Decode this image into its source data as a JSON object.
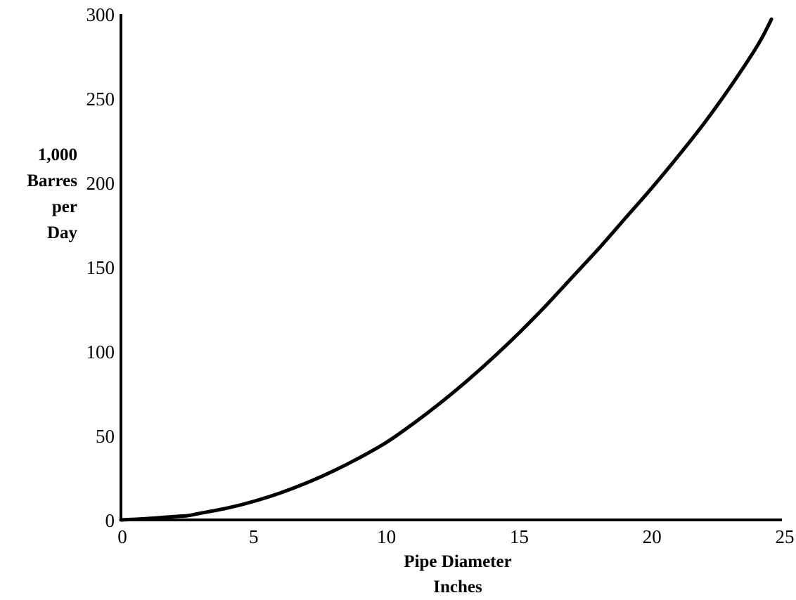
{
  "chart_data": {
    "type": "line",
    "title": "",
    "xlabel": [
      "Pipe Diameter",
      "Inches"
    ],
    "ylabel": [
      "1,000",
      "Barres",
      "per",
      "Day"
    ],
    "xlim": [
      0,
      25
    ],
    "ylim": [
      0,
      300
    ],
    "xticks": [
      "0",
      "5",
      "10",
      "15",
      "20",
      "25"
    ],
    "yticks": [
      "0",
      "50",
      "100",
      "150",
      "200",
      "250",
      "300"
    ],
    "grid": false,
    "series": [
      {
        "color": "#000000",
        "x": [
          0,
          1,
          2,
          2.5,
          3,
          4,
          5,
          6,
          7,
          8,
          9,
          10,
          11,
          12,
          13,
          14,
          15,
          16,
          17,
          18,
          19,
          20,
          21,
          22,
          23,
          24,
          24.5
        ],
        "y": [
          0,
          0.8,
          2,
          2.5,
          4,
          7,
          11,
          16,
          22,
          29,
          37,
          46,
          57,
          69,
          82,
          96,
          111,
          127,
          144,
          161,
          179,
          197,
          216,
          236,
          258,
          282,
          297
        ]
      }
    ]
  }
}
